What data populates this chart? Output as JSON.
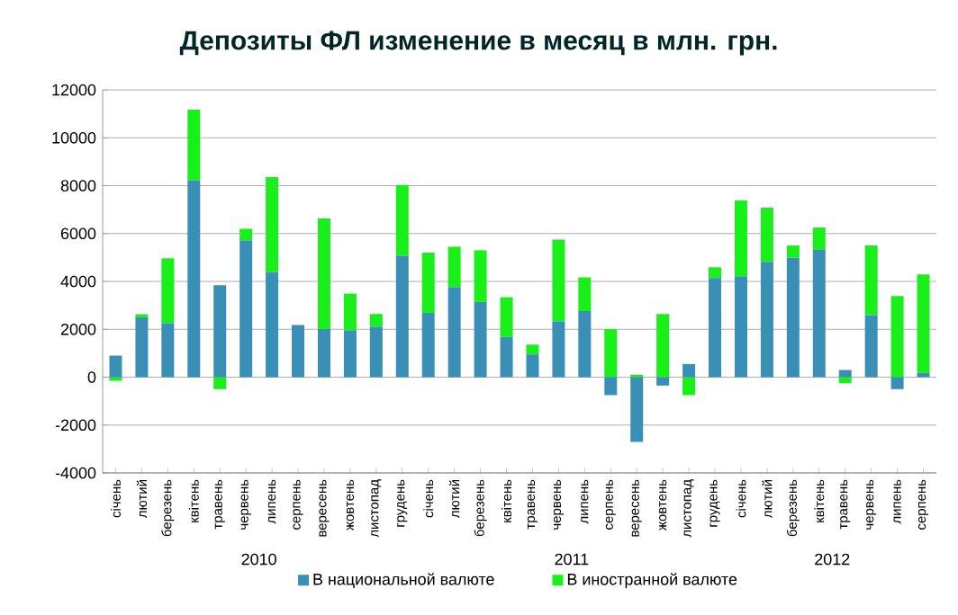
{
  "chart_data": {
    "type": "bar",
    "title": "Депозиты ФЛ изменение в месяц в млн. грн.",
    "categories": [
      "січень",
      "лютий",
      "березень",
      "квітень",
      "травень",
      "червень",
      "липень",
      "серпень",
      "вересень",
      "жовтень",
      "листопад",
      "грудень",
      "січень",
      "лютий",
      "березень",
      "квітень",
      "травень",
      "червень",
      "липень",
      "серпень",
      "вересень",
      "жовтень",
      "листопад",
      "грудень",
      "січень",
      "лютий",
      "березень",
      "квітень",
      "травень",
      "червень",
      "липень",
      "серпень"
    ],
    "series": [
      {
        "name": "В национальной валюте",
        "color": "#3a8fb7",
        "values": [
          900,
          2500,
          2260,
          8230,
          3840,
          5720,
          4390,
          2180,
          2010,
          1960,
          2110,
          5070,
          2690,
          3770,
          3140,
          1680,
          950,
          2330,
          2760,
          -750,
          -2700,
          -350,
          550,
          4140,
          4220,
          4820,
          4990,
          5320,
          300,
          2590,
          -500,
          180
        ]
      },
      {
        "name": "В иностранной валюте",
        "color": "#19f019",
        "values": [
          -150,
          130,
          2710,
          2940,
          -500,
          480,
          3970,
          0,
          4620,
          1530,
          530,
          2960,
          2510,
          1680,
          2160,
          1660,
          410,
          3420,
          1410,
          2010,
          100,
          2640,
          -750,
          450,
          3160,
          2260,
          510,
          930,
          -250,
          2910,
          3390,
          4110
        ]
      }
    ],
    "stacked": true,
    "ylim": [
      -4000,
      12000
    ],
    "yticks": [
      -4000,
      -2000,
      0,
      2000,
      4000,
      6000,
      8000,
      10000,
      12000
    ],
    "grid": "y",
    "legend": "bottom",
    "annotations": [
      "2010",
      "2011",
      "2012"
    ]
  }
}
